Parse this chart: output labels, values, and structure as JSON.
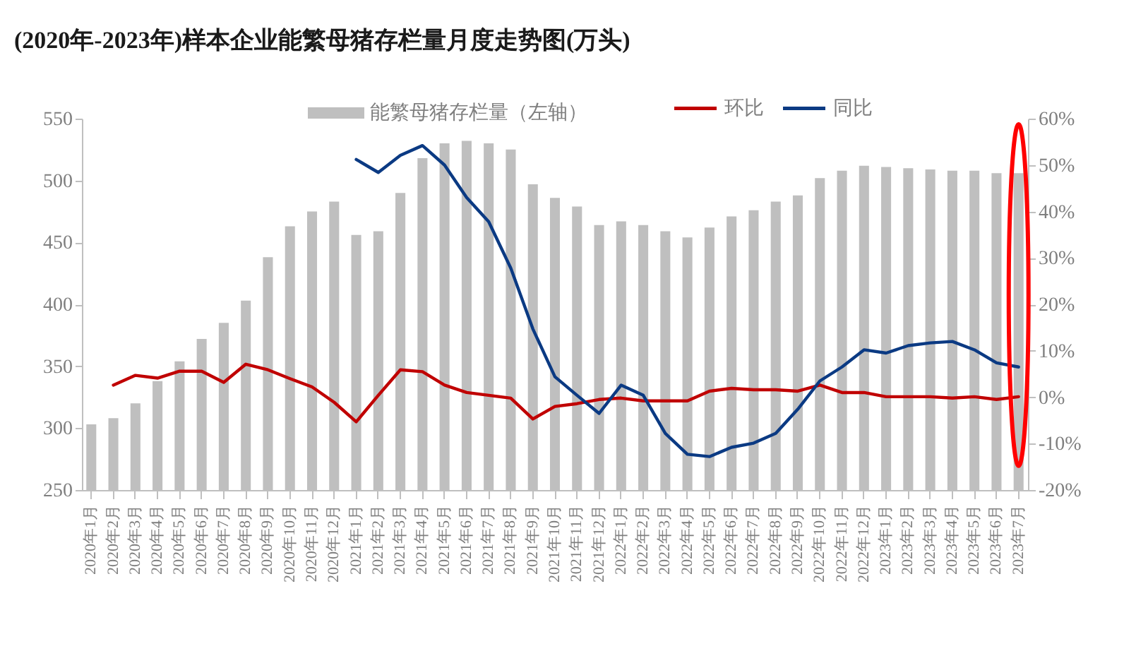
{
  "chart_data": {
    "type": "bar",
    "title": "(2020年-2023年)样本企业能繁母猪存栏量月度走势图(万头)",
    "categories": [
      "2020年1月",
      "2020年2月",
      "2020年3月",
      "2020年4月",
      "2020年5月",
      "2020年6月",
      "2020年7月",
      "2020年8月",
      "2020年9月",
      "2020年10月",
      "2020年11月",
      "2020年12月",
      "2021年1月",
      "2021年2月",
      "2021年3月",
      "2021年4月",
      "2021年5月",
      "2021年6月",
      "2021年7月",
      "2021年8月",
      "2021年9月",
      "2021年10月",
      "2021年11月",
      "2021年12月",
      "2022年1月",
      "2022年2月",
      "2022年3月",
      "2022年4月",
      "2022年5月",
      "2022年6月",
      "2022年7月",
      "2022年8月",
      "2022年9月",
      "2022年10月",
      "2022年11月",
      "2022年12月",
      "2023年1月",
      "2023年2月",
      "2023年3月",
      "2023年4月",
      "2023年5月",
      "2023年6月",
      "2023年7月"
    ],
    "series": [
      {
        "name": "能繁母猪存栏量（左轴）",
        "color": "#bfbfbf",
        "values": [
          303,
          308,
          320,
          338,
          354,
          372,
          385,
          403,
          438,
          463,
          475,
          483,
          456,
          459,
          490,
          518,
          530,
          532,
          530,
          525,
          497,
          486,
          479,
          464,
          467,
          464,
          459,
          454,
          462,
          471,
          476,
          483,
          488,
          502,
          508,
          512,
          511,
          510,
          509,
          508,
          508,
          506,
          506
        ]
      },
      {
        "name": "环比",
        "type": "line",
        "axis": "y2",
        "color": "#c00000",
        "values": [
          null,
          2.6,
          4.7,
          4.1,
          5.6,
          5.6,
          3.2,
          7.1,
          5.9,
          4,
          2.2,
          -1.1,
          -5.3,
          0.4,
          5.9,
          5.5,
          2.6,
          1,
          0.4,
          -0.2,
          -4.7,
          -2,
          -1.4,
          -0.5,
          -0.2,
          -0.8,
          -0.8,
          -0.8,
          1.3,
          1.9,
          1.6,
          1.6,
          1.3,
          2.6,
          1,
          1,
          0.1,
          0.1,
          0.1,
          -0.2,
          0.1,
          -0.5,
          0.1
        ]
      },
      {
        "name": "同比",
        "type": "line",
        "axis": "y2",
        "color": "#0b3a83",
        "values": [
          null,
          null,
          null,
          null,
          null,
          null,
          null,
          null,
          null,
          null,
          null,
          null,
          51.2,
          48.4,
          52.1,
          54.2,
          50,
          43,
          37.8,
          27.8,
          14.7,
          4.4,
          0.4,
          -3.5,
          2.6,
          0.4,
          -7.8,
          -12.3,
          -12.8,
          -10.8,
          -9.9,
          -7.8,
          -2.6,
          3.5,
          6.5,
          10.2,
          9.5,
          11.1,
          11.7,
          12,
          10.2,
          7.4,
          6.5
        ]
      }
    ],
    "ylim": [
      250,
      550
    ],
    "yticks": [
      250,
      300,
      350,
      400,
      450,
      500,
      550
    ],
    "y2lim": [
      -20,
      60
    ],
    "y2ticks": [
      {
        "value": -20,
        "label": "-20%"
      },
      {
        "value": -10,
        "label": "-10%"
      },
      {
        "value": 0,
        "label": "0%"
      },
      {
        "value": 10,
        "label": "10%"
      },
      {
        "value": 20,
        "label": "20%"
      },
      {
        "value": 30,
        "label": "30%"
      },
      {
        "value": 40,
        "label": "40%"
      },
      {
        "value": 50,
        "label": "50%"
      },
      {
        "value": 60,
        "label": "60%"
      }
    ],
    "legend": "top"
  }
}
